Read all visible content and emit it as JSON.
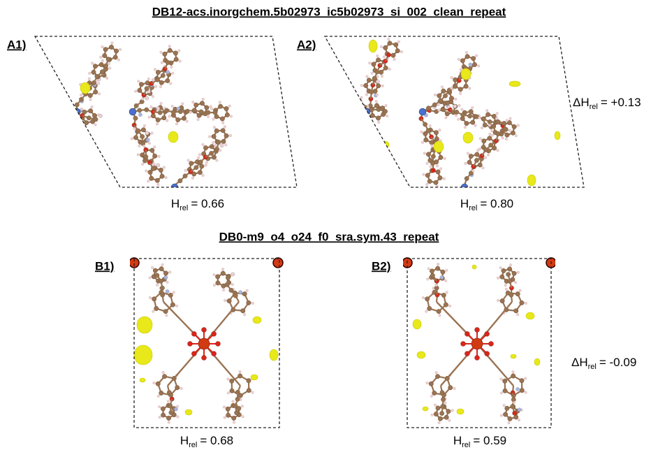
{
  "panels_a": {
    "title": "DB12-acs.inorgchem.5b02973_ic5b02973_si_002_clean_repeat",
    "left": {
      "label": "A1)",
      "energy": {
        "symbol": "H",
        "subscript": "rel",
        "value": "= 0.66"
      }
    },
    "right": {
      "label": "A2)",
      "energy": {
        "symbol": "H",
        "subscript": "rel",
        "value": "= 0.80"
      }
    },
    "difference": {
      "symbol": "ΔH",
      "subscript": "rel",
      "value": "= +0.13"
    }
  },
  "panels_b": {
    "title": "DB0-m9_o4_o24_f0_sra.sym.43_repeat",
    "left": {
      "label": "B1)",
      "energy": {
        "symbol": "H",
        "subscript": "rel",
        "value": "= 0.68"
      }
    },
    "right": {
      "label": "B2)",
      "energy": {
        "symbol": "H",
        "subscript": "rel",
        "value": "= 0.59"
      }
    },
    "difference": {
      "symbol": "ΔH",
      "subscript": "rel",
      "value": "= -0.09"
    }
  }
}
